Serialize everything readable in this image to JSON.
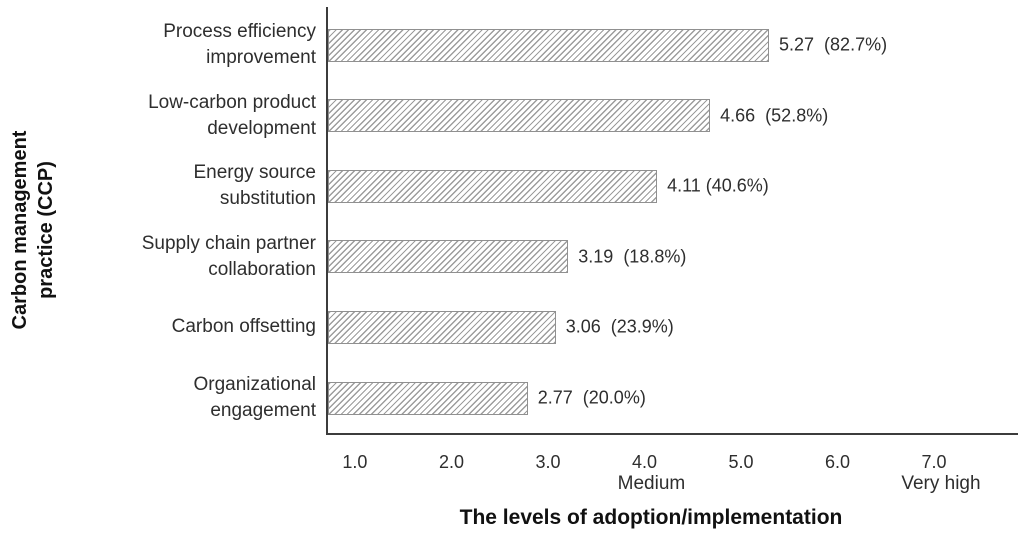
{
  "chart_data": {
    "type": "bar",
    "orientation": "horizontal",
    "xlabel": "The levels of adoption/implementation",
    "ylabel": "Carbon management practice (CCP)",
    "ylabel_lines": [
      "Carbon management",
      "practice (CCP)"
    ],
    "categories": [
      "Process efficiency improvement",
      "Low-carbon product development",
      "Energy source substitution",
      "Supply chain partner collaboration",
      "Carbon offsetting",
      "Organizational engagement"
    ],
    "category_lines": [
      [
        "Process efficiency",
        "improvement"
      ],
      [
        "Low-carbon product",
        "development"
      ],
      [
        "Energy source",
        "substitution"
      ],
      [
        "Supply chain partner",
        "collaboration"
      ],
      [
        "Carbon offsetting"
      ],
      [
        "Organizational",
        "engagement"
      ]
    ],
    "values": [
      5.27,
      4.66,
      4.11,
      3.19,
      3.06,
      2.77
    ],
    "percents": [
      82.7,
      52.8,
      40.6,
      18.8,
      23.9,
      20.0
    ],
    "bar_labels": [
      "5.27  (82.7%)",
      "4.66  (52.8%)",
      "4.11 (40.6%)",
      "3.19  (18.8%)",
      "3.06  (23.9%)",
      "2.77  (20.0%)"
    ],
    "x_ticks": [
      "1.0",
      "2.0",
      "3.0",
      "4.0",
      "5.0",
      "6.0",
      "7.0"
    ],
    "x_tick_values": [
      1.0,
      2.0,
      3.0,
      4.0,
      5.0,
      6.0,
      7.0
    ],
    "x_tick_sublabels": [
      {
        "at": 4.0,
        "text": "Medium"
      },
      {
        "at": 7.0,
        "text": "Very high"
      }
    ],
    "xlim": [
      0.7,
      7.85
    ],
    "grid": false,
    "legend": null,
    "bar_style": {
      "fill": "#ffffff",
      "hatch": "diagonal-forward",
      "hatch_color": "#9c9c9c",
      "border_color": "#909090"
    },
    "colors": {
      "axis": "#3c3c3c",
      "text": "#2e2e2e",
      "title_text": "#111111",
      "background": "#ffffff"
    }
  }
}
